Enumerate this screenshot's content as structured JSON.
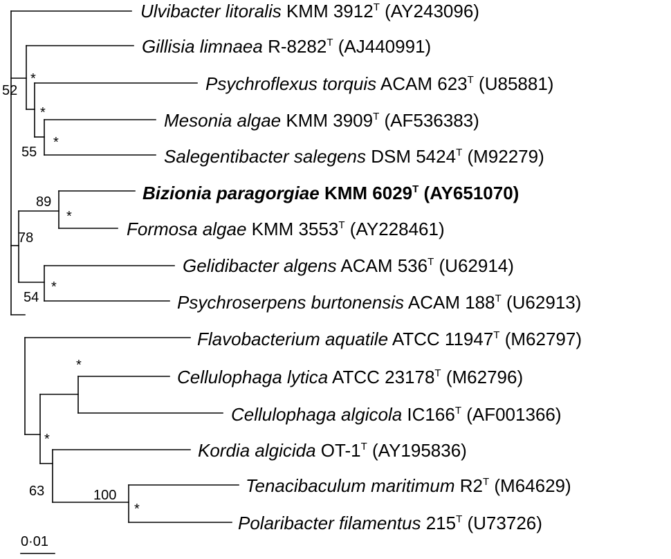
{
  "taxa": [
    {
      "genus_species": "Ulvibacter litoralis",
      "strain": "KMM 3912",
      "accession": "(AY243096)"
    },
    {
      "genus_species": "Gillisia limnaea",
      "strain": "R-8282",
      "accession": "(AJ440991)"
    },
    {
      "genus_species": "Psychroflexus torquis",
      "strain": "ACAM 623",
      "accession": "(U85881)"
    },
    {
      "genus_species": "Mesonia algae",
      "strain": "KMM 3909",
      "accession": "(AF536383)"
    },
    {
      "genus_species": "Salegentibacter salegens",
      "strain": "DSM 5424",
      "accession": "(M92279)"
    },
    {
      "genus_species": "Bizionia paragorgiae",
      "strain": "KMM 6029",
      "accession": "(AY651070)"
    },
    {
      "genus_species": "Formosa algae",
      "strain": "KMM 3553",
      "accession": "(AY228461)"
    },
    {
      "genus_species": "Gelidibacter algens",
      "strain": "ACAM 536",
      "accession": "(U62914)"
    },
    {
      "genus_species": "Psychroserpens burtonensis",
      "strain": "ACAM 188",
      "accession": "(U62913)"
    },
    {
      "genus_species": "Flavobacterium aquatile",
      "strain": "ATCC 11947",
      "accession": "(M62797)"
    },
    {
      "genus_species": "Cellulophaga lytica",
      "strain": "ATCC 23178",
      "accession": "(M62796)"
    },
    {
      "genus_species": "Cellulophaga algicola",
      "strain": "IC166",
      "accession": "(AF001366)"
    },
    {
      "genus_species": "Kordia algicida",
      "strain": "OT-1",
      "accession": "(AY195836)"
    },
    {
      "genus_species": "Tenacibaculum maritimum",
      "strain": "R2",
      "accession": "(M64629)"
    },
    {
      "genus_species": "Polaribacter filamentus",
      "strain": "215",
      "accession": "(U73726)"
    }
  ],
  "type_strain_mark": "T",
  "bootstrap_values": [
    "52",
    "55",
    "89",
    "78",
    "54",
    "63",
    "100"
  ],
  "node_marker": "*",
  "scale_bar_label": "0·01"
}
